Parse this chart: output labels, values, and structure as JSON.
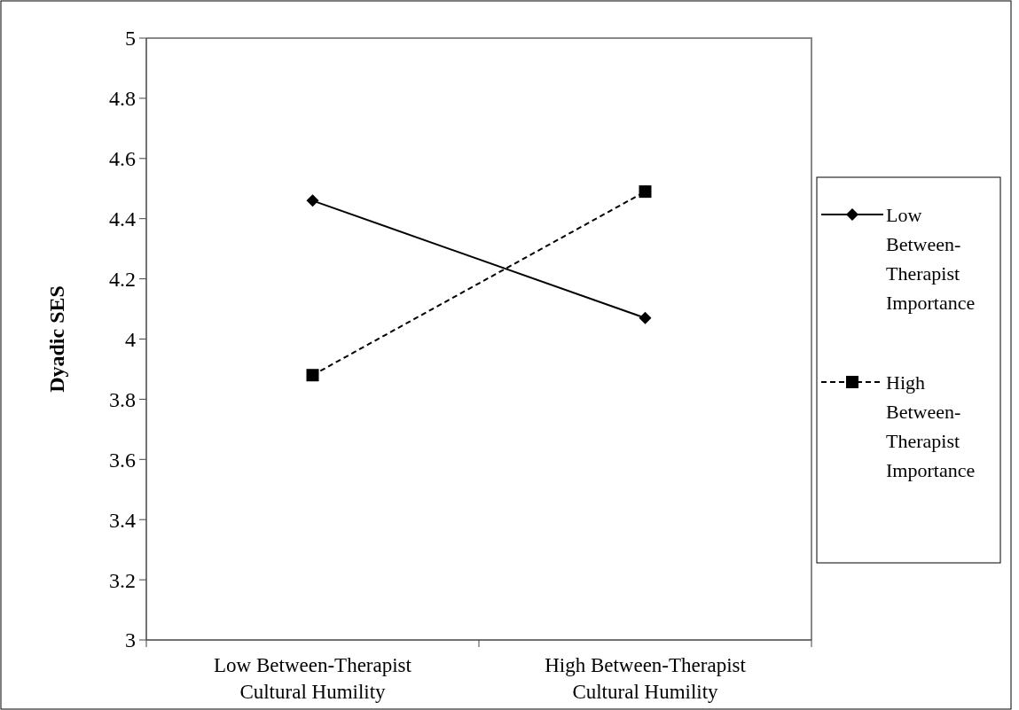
{
  "chart_data": {
    "type": "line",
    "ylabel": "Dyadic SES",
    "categories": [
      "Low Between-Therapist Cultural Humility",
      "High Between-Therapist Cultural Humility"
    ],
    "ylim": [
      3,
      5
    ],
    "yticks": [
      3,
      3.2,
      3.4,
      3.6,
      3.8,
      4,
      4.2,
      4.4,
      4.6,
      4.8,
      5
    ],
    "grid": false,
    "legend": "right",
    "series": [
      {
        "name": "Low Between-Therapist Importance",
        "color": "#000000",
        "values": [
          4.46,
          4.07
        ],
        "marker": "diamond",
        "line_style": "solid"
      },
      {
        "name": "High Between-Therapist Importance",
        "color": "#000000",
        "values": [
          3.88,
          4.49
        ],
        "marker": "square",
        "line_style": "dashed"
      }
    ]
  }
}
